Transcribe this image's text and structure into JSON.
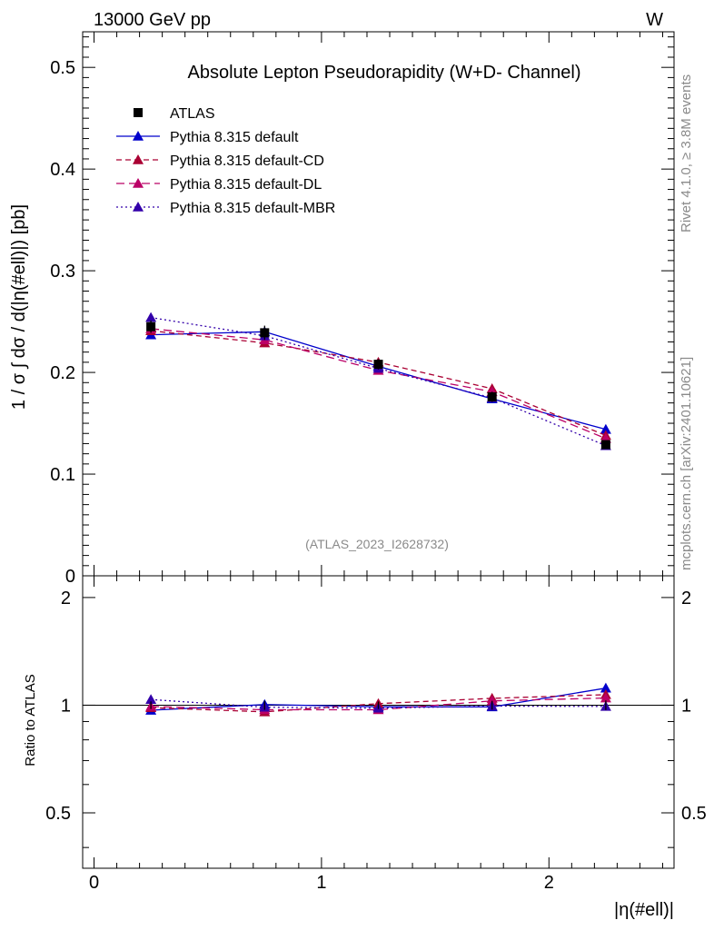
{
  "chart_data": {
    "type": "line",
    "title": "Absolute Lepton Pseudorapidity (W+D- Channel)",
    "header_left": "13000 GeV pp",
    "header_right": "W",
    "ylabel": "1 / σ ∫ dσ / d(|η(#ell)|) [pb]",
    "xlabel": "|η(#ell)|",
    "ratio_ylabel": "Ratio to ATLAS",
    "side_text_top": "Rivet 4.1.0, ≥ 3.8M events",
    "side_text_bottom": "mcplots.cern.ch [arXiv:2401.10621]",
    "analysis_id": "(ATLAS_2023_I2628732)",
    "xlim": [
      -0.05,
      2.55
    ],
    "ylim": [
      0,
      0.535
    ],
    "ratio_ylim": [
      0.35,
      2.3
    ],
    "x_ticks": [
      "0",
      "1",
      "2"
    ],
    "y_ticks": [
      "0",
      "0.1",
      "0.2",
      "0.3",
      "0.4",
      "0.5"
    ],
    "ratio_y_ticks": [
      "0.5",
      "1",
      "2"
    ],
    "x": [
      0.25,
      0.75,
      1.25,
      1.75,
      2.25
    ],
    "data": {
      "name": "ATLAS",
      "values": [
        0.245,
        0.239,
        0.208,
        0.176,
        0.129
      ],
      "errors": [
        0.006,
        0.007,
        0.005,
        0.005,
        0.004
      ]
    },
    "series": [
      {
        "name": "Pythia 8.315 default",
        "color": "#0000cc",
        "dash": "",
        "values": [
          0.237,
          0.24,
          0.206,
          0.174,
          0.144
        ],
        "ratio": [
          0.968,
          1.004,
          0.99,
          0.989,
          1.116
        ]
      },
      {
        "name": "Pythia 8.315 default-CD",
        "color": "#aa0033",
        "dash": "6,4",
        "values": [
          0.241,
          0.229,
          0.21,
          0.184,
          0.138
        ],
        "ratio": [
          0.984,
          0.958,
          1.01,
          1.045,
          1.07
        ]
      },
      {
        "name": "Pythia 8.315 default-DL",
        "color": "#bb0066",
        "dash": "9,5",
        "values": [
          0.243,
          0.232,
          0.202,
          0.181,
          0.135
        ],
        "ratio": [
          0.992,
          0.971,
          0.971,
          1.028,
          1.047
        ]
      },
      {
        "name": "Pythia 8.315 default-MBR",
        "color": "#3300aa",
        "dash": "2,3",
        "values": [
          0.254,
          0.236,
          0.204,
          0.175,
          0.128
        ],
        "ratio": [
          1.037,
          0.987,
          0.981,
          0.994,
          0.992
        ]
      }
    ]
  }
}
